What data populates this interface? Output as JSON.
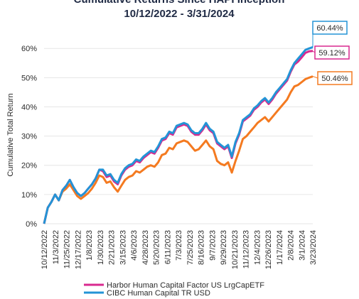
{
  "chart_data": {
    "type": "line",
    "title": "Cumulative Returns Since HAPI Inception",
    "subtitle": "10/12/2022 - 3/31/2024",
    "xlabel": "",
    "ylabel": "Cumulative Total Return",
    "ylim": [
      0,
      62
    ],
    "y_ticks": [
      0,
      10,
      20,
      30,
      40,
      50,
      60
    ],
    "y_tick_labels": [
      "0%",
      "10%",
      "20%",
      "30%",
      "40%",
      "50%",
      "60%"
    ],
    "x_tick_labels": [
      "10/12/2022",
      "11/3/2022",
      "11/25/2022",
      "12/17/2022",
      "1/8/2023",
      "1/30/2023",
      "2/21/2023",
      "3/15/2023",
      "4/6/2023",
      "4/28/2023",
      "5/20/2023",
      "6/11/2023",
      "7/3/2023",
      "7/25/2023",
      "8/16/2023",
      "9/7/2023",
      "9/29/2023",
      "10/21/2023",
      "11/12/2023",
      "12/4/2023",
      "12/26/2023",
      "1/17/2024",
      "2/8/2024",
      "3/1/2024",
      "3/23/2024"
    ],
    "grid": "horizontal",
    "legend_position": "bottom",
    "x": [
      "10/12/2022",
      "10/20/2022",
      "10/27/2022",
      "11/3/2022",
      "11/10/2022",
      "11/17/2022",
      "11/25/2022",
      "12/2/2022",
      "12/9/2022",
      "12/17/2022",
      "12/23/2022",
      "12/30/2022",
      "1/8/2023",
      "1/15/2023",
      "1/22/2023",
      "1/30/2023",
      "2/7/2023",
      "2/14/2023",
      "2/21/2023",
      "3/1/2023",
      "3/8/2023",
      "3/15/2023",
      "3/22/2023",
      "3/29/2023",
      "4/6/2023",
      "4/13/2023",
      "4/20/2023",
      "4/28/2023",
      "5/5/2023",
      "5/12/2023",
      "5/20/2023",
      "5/27/2023",
      "6/3/2023",
      "6/11/2023",
      "6/18/2023",
      "6/25/2023",
      "7/3/2023",
      "7/10/2023",
      "7/17/2023",
      "7/25/2023",
      "8/1/2023",
      "8/8/2023",
      "8/16/2023",
      "8/23/2023",
      "8/30/2023",
      "9/7/2023",
      "9/14/2023",
      "9/21/2023",
      "9/29/2023",
      "10/6/2023",
      "10/13/2023",
      "10/21/2023",
      "10/28/2023",
      "11/4/2023",
      "11/12/2023",
      "11/19/2023",
      "11/26/2023",
      "12/4/2023",
      "12/11/2023",
      "12/18/2023",
      "12/26/2023",
      "1/2/2024",
      "1/9/2024",
      "1/17/2024",
      "1/24/2024",
      "1/31/2024",
      "2/8/2024",
      "2/15/2024",
      "2/22/2024",
      "3/1/2024",
      "3/8/2024",
      "3/15/2024",
      "3/23/2024",
      "3/31/2024"
    ],
    "series": [
      {
        "name": "Harbor Human Capital Factor US LrgCapETF",
        "color": "#d9298f",
        "values": [
          0.0,
          5.5,
          7.5,
          10.0,
          8.0,
          11.5,
          13.0,
          15.0,
          12.5,
          10.5,
          9.5,
          10.5,
          12.0,
          13.5,
          15.5,
          18.5,
          18.0,
          16.0,
          16.5,
          14.5,
          13.5,
          16.5,
          18.5,
          19.5,
          20.0,
          21.5,
          21.0,
          22.5,
          23.5,
          24.5,
          24.0,
          26.0,
          28.5,
          29.0,
          31.0,
          30.5,
          33.0,
          33.5,
          34.0,
          33.5,
          31.5,
          30.5,
          30.5,
          32.0,
          34.0,
          32.0,
          31.0,
          27.5,
          26.5,
          25.5,
          26.5,
          22.5,
          27.5,
          30.5,
          35.0,
          36.0,
          37.0,
          39.0,
          40.0,
          41.5,
          42.5,
          41.0,
          42.5,
          44.5,
          46.0,
          47.5,
          49.0,
          52.0,
          54.5,
          55.5,
          57.0,
          58.5,
          59.0,
          59.12
        ]
      },
      {
        "name": "CIBC Human Capital TR USD",
        "color": "#2394d6",
        "values": [
          0.0,
          5.5,
          7.5,
          10.0,
          8.0,
          11.5,
          13.0,
          15.0,
          12.5,
          10.5,
          9.5,
          10.5,
          12.0,
          13.5,
          15.5,
          18.5,
          18.5,
          16.5,
          17.0,
          15.0,
          14.0,
          17.0,
          19.0,
          20.0,
          20.5,
          22.0,
          21.5,
          23.0,
          24.0,
          25.0,
          24.5,
          26.5,
          29.0,
          29.5,
          31.5,
          31.0,
          33.5,
          34.0,
          34.5,
          34.0,
          32.0,
          31.0,
          31.0,
          32.5,
          34.5,
          32.5,
          31.5,
          28.0,
          27.0,
          26.0,
          27.0,
          23.0,
          28.0,
          31.0,
          35.5,
          36.5,
          37.5,
          39.5,
          40.5,
          42.0,
          43.0,
          41.5,
          43.0,
          45.0,
          46.5,
          48.0,
          49.5,
          52.5,
          55.0,
          56.5,
          58.0,
          59.5,
          60.0,
          60.44
        ]
      },
      {
        "name": "",
        "color": "#f47a20",
        "values": [
          0.0,
          5.5,
          7.5,
          10.0,
          8.0,
          11.0,
          12.0,
          13.5,
          11.5,
          9.5,
          8.5,
          9.5,
          10.5,
          12.0,
          14.0,
          16.5,
          16.0,
          14.0,
          14.5,
          12.5,
          11.0,
          13.0,
          15.0,
          16.0,
          16.5,
          18.0,
          17.5,
          18.5,
          19.5,
          20.0,
          19.5,
          21.0,
          23.5,
          24.0,
          26.0,
          25.5,
          27.5,
          28.0,
          28.5,
          28.0,
          26.5,
          25.0,
          25.5,
          27.0,
          28.5,
          26.5,
          25.5,
          21.5,
          20.5,
          20.0,
          21.0,
          17.5,
          21.5,
          25.0,
          29.0,
          30.0,
          31.5,
          33.0,
          34.5,
          35.5,
          36.5,
          35.0,
          36.5,
          38.0,
          39.5,
          41.0,
          42.5,
          45.0,
          47.0,
          47.5,
          48.5,
          49.5,
          50.0,
          50.46
        ]
      }
    ],
    "callouts": [
      {
        "text": "60.44%",
        "color": "#2394d6",
        "value": 60.44
      },
      {
        "text": "59.12%",
        "color": "#d9298f",
        "value": 59.12
      },
      {
        "text": "50.46%",
        "color": "#f47a20",
        "value": 50.46
      }
    ],
    "legend": [
      {
        "label": "Harbor Human Capital Factor US LrgCapETF",
        "color": "#d9298f"
      },
      {
        "label": "CIBC Human Capital TR USD",
        "color": "#2394d6"
      }
    ]
  }
}
